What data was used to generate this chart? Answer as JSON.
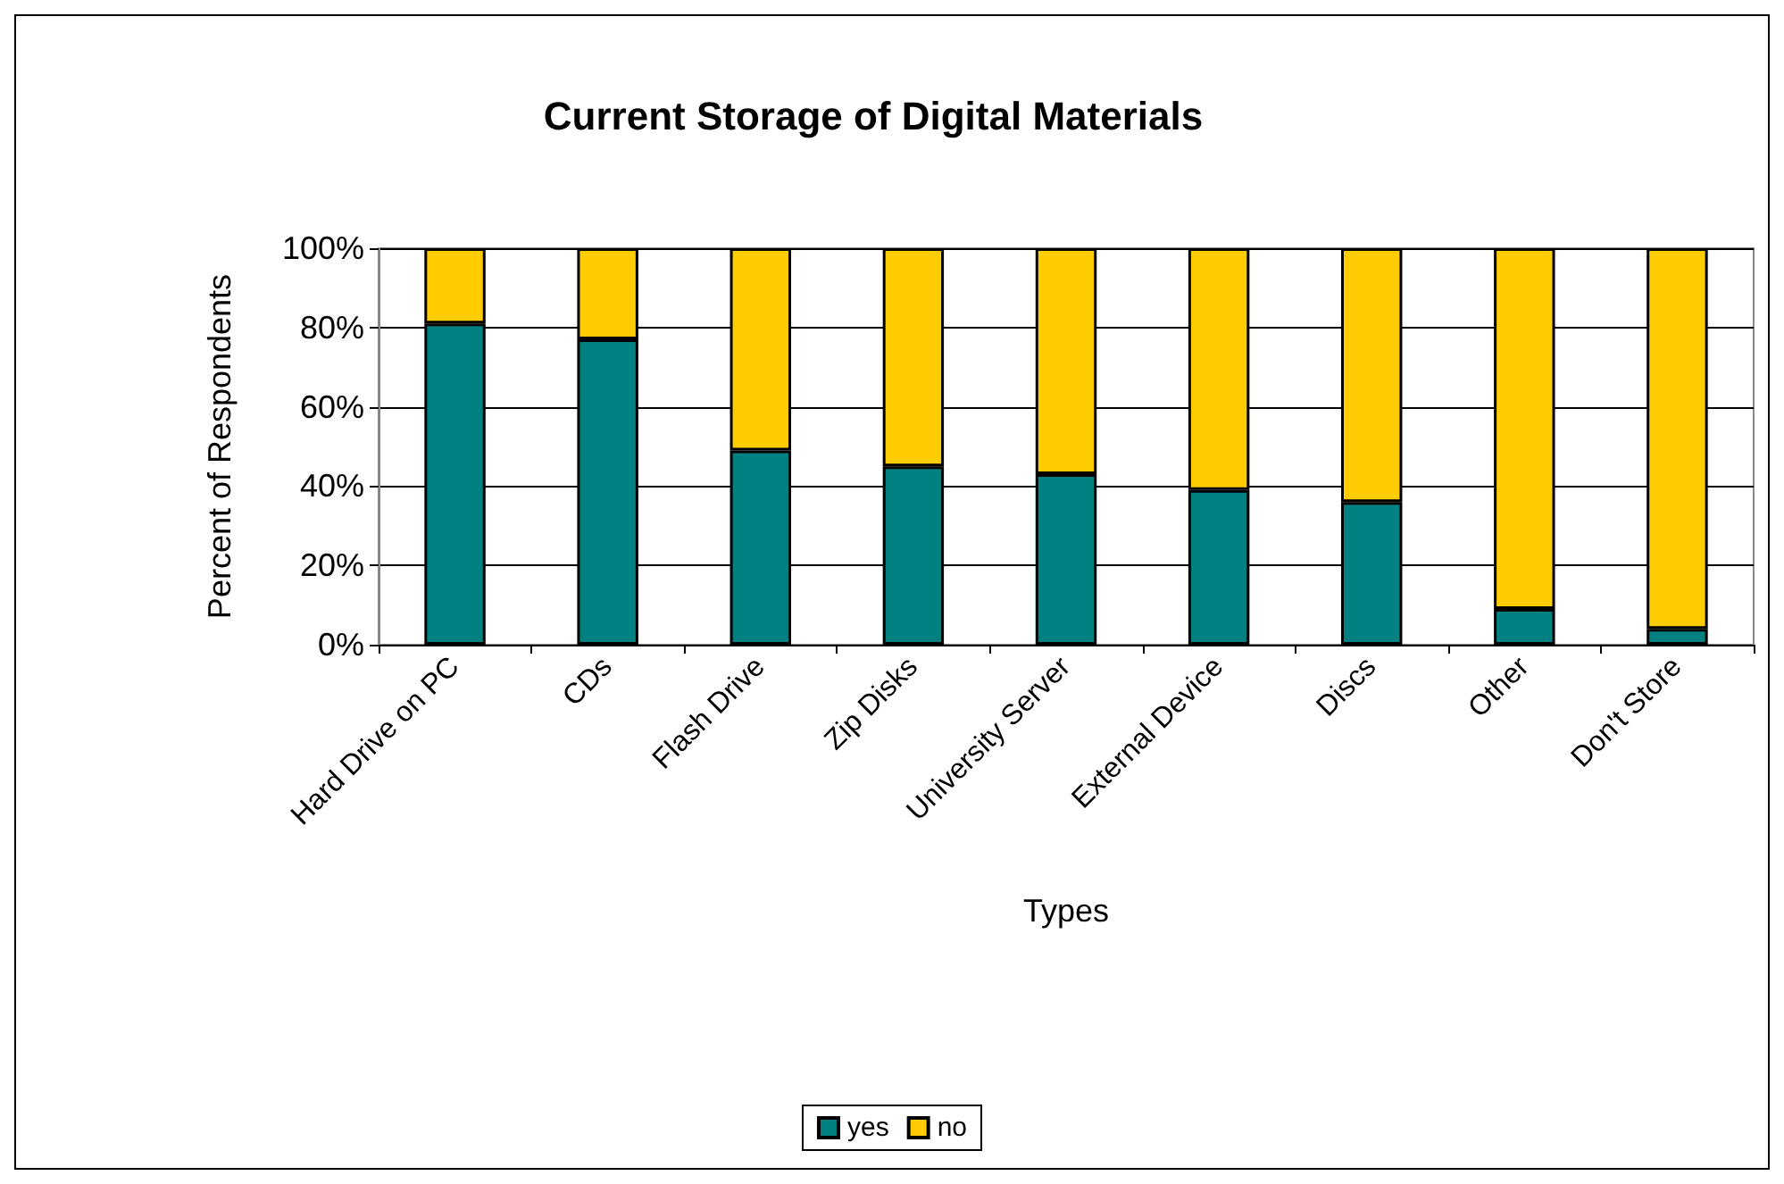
{
  "chart_data": {
    "type": "bar",
    "title": "Current Storage of Digital Materials",
    "xlabel": "Types",
    "ylabel": "Percent of Respondents",
    "categories": [
      "Hard Drive on PC",
      "CDs",
      "Flash Drive",
      "Zip Disks",
      "University Server",
      "External Device",
      "Discs",
      "Other",
      "Don't Store"
    ],
    "stacked": true,
    "series": [
      {
        "name": "yes",
        "color": "#008080",
        "values": [
          81,
          77,
          49,
          45,
          43,
          39,
          36,
          9,
          4
        ]
      },
      {
        "name": "no",
        "color": "#ffcc00",
        "values": [
          19,
          23,
          51,
          55,
          57,
          61,
          64,
          91,
          96
        ]
      }
    ],
    "ylim": [
      0,
      100
    ],
    "yticks": [
      {
        "value": 0,
        "label": "0%"
      },
      {
        "value": 20,
        "label": "20%"
      },
      {
        "value": 40,
        "label": "40%"
      },
      {
        "value": 60,
        "label": "60%"
      },
      {
        "value": 80,
        "label": "80%"
      },
      {
        "value": 100,
        "label": "100%"
      }
    ],
    "grid": "y",
    "legend": "bottom"
  }
}
